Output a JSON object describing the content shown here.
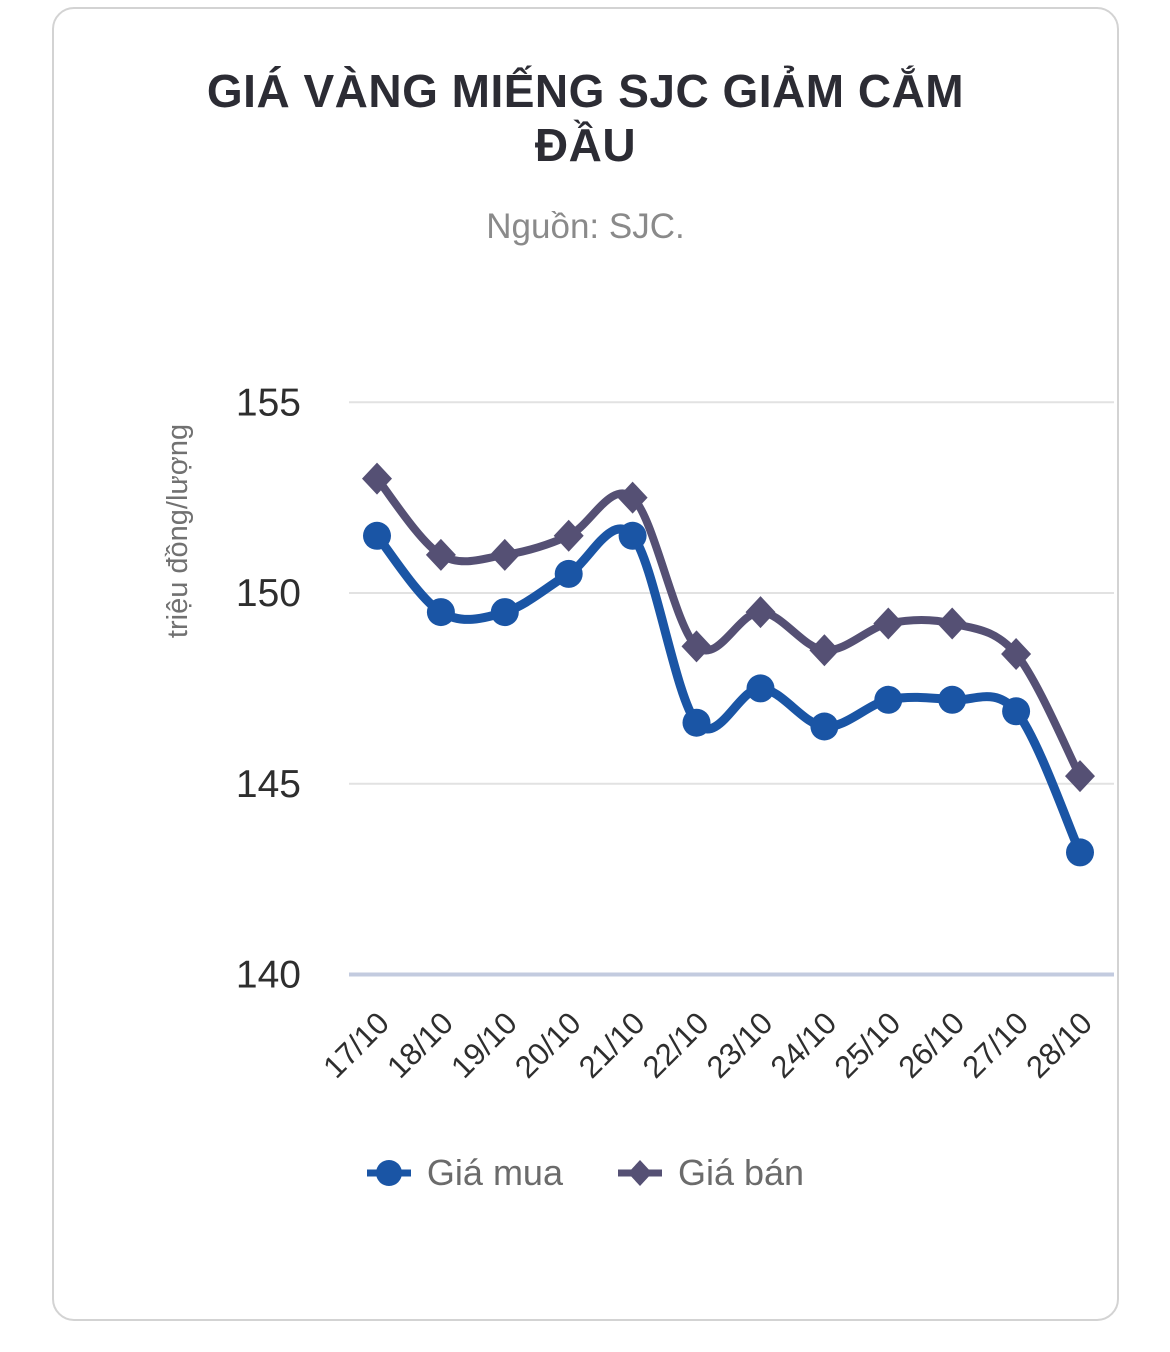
{
  "chart_data": {
    "type": "line",
    "title": "GIÁ VÀNG MIẾNG SJC GIẢM CẮM ĐẦU",
    "subtitle": "Nguồn: SJC.",
    "ylabel": "triệu đồng/lượng",
    "categories": [
      "17/10",
      "18/10",
      "19/10",
      "20/10",
      "21/10",
      "22/10",
      "23/10",
      "24/10",
      "25/10",
      "26/10",
      "27/10",
      "28/10"
    ],
    "series": [
      {
        "name": "Giá mua",
        "marker": "circle",
        "color": "#1a55a5",
        "values": [
          151.5,
          149.5,
          149.5,
          150.5,
          151.5,
          146.6,
          147.5,
          146.5,
          147.2,
          147.2,
          146.9,
          143.2
        ]
      },
      {
        "name": "Giá bán",
        "marker": "diamond",
        "color": "#555074",
        "values": [
          153.0,
          151.0,
          151.0,
          151.5,
          152.5,
          148.6,
          149.5,
          148.5,
          149.2,
          149.2,
          148.4,
          145.2
        ]
      }
    ],
    "yticks": [
      155,
      150,
      145,
      140
    ],
    "ylim": [
      140,
      155
    ],
    "grid": true,
    "legend_position": "bottom",
    "colors": {
      "grid_line": "#e2e2e2",
      "baseline_axis": "#c3cbdf",
      "tick_label": "#2e2e2e",
      "x_label": "#2e2e2e",
      "y_axis_title": "#717171",
      "title": "#2c2c34",
      "subtitle": "#8a8a8a",
      "legend_text": "#6b6b6b",
      "card_border": "#d3d3d3"
    }
  }
}
